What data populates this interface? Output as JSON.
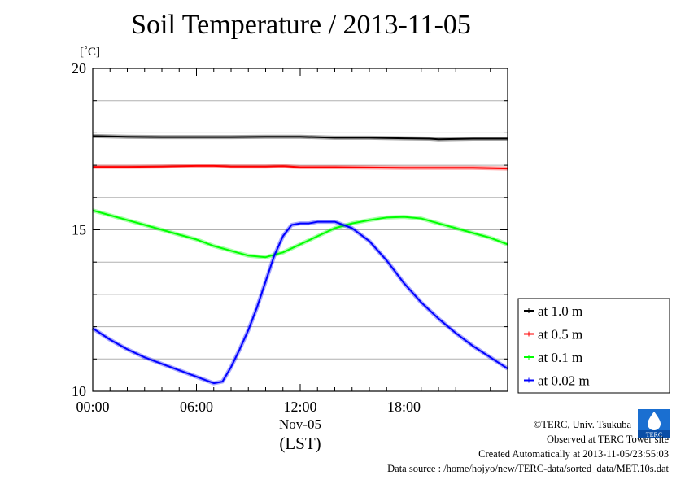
{
  "chart_data": {
    "type": "line",
    "title": "Soil Temperature / 2013-11-05",
    "ylabel": "[˚C]",
    "xlabel": "(LST)",
    "xdate": "Nov-05",
    "ylim": [
      10,
      20
    ],
    "xlim": [
      0,
      24
    ],
    "yticks": [
      10,
      15,
      20
    ],
    "xticks": [
      {
        "x": 0,
        "label": "00:00"
      },
      {
        "x": 6,
        "label": "06:00"
      },
      {
        "x": 12,
        "label": "12:00"
      },
      {
        "x": 18,
        "label": "18:00"
      }
    ],
    "grid": true,
    "legend_position": "right",
    "series": [
      {
        "name": "at 1.0 m",
        "color": "#000000",
        "points": [
          [
            0,
            17.9
          ],
          [
            2,
            17.88
          ],
          [
            4,
            17.87
          ],
          [
            6,
            17.87
          ],
          [
            8,
            17.87
          ],
          [
            10,
            17.88
          ],
          [
            12,
            17.88
          ],
          [
            14,
            17.85
          ],
          [
            16,
            17.85
          ],
          [
            18,
            17.83
          ],
          [
            19.5,
            17.82
          ],
          [
            20,
            17.8
          ],
          [
            22,
            17.82
          ],
          [
            24,
            17.82
          ]
        ]
      },
      {
        "name": "at 0.5 m",
        "color": "#ff0000",
        "points": [
          [
            0,
            16.95
          ],
          [
            2,
            16.95
          ],
          [
            4,
            16.96
          ],
          [
            6,
            16.98
          ],
          [
            7,
            16.98
          ],
          [
            8,
            16.96
          ],
          [
            10,
            16.96
          ],
          [
            11,
            16.97
          ],
          [
            12,
            16.94
          ],
          [
            14,
            16.94
          ],
          [
            16,
            16.93
          ],
          [
            18,
            16.92
          ],
          [
            20,
            16.92
          ],
          [
            22,
            16.92
          ],
          [
            24,
            16.9
          ]
        ]
      },
      {
        "name": "at 0.1 m",
        "color": "#00ff00",
        "points": [
          [
            0,
            15.6
          ],
          [
            1,
            15.45
          ],
          [
            2,
            15.3
          ],
          [
            3,
            15.15
          ],
          [
            4,
            15.0
          ],
          [
            5,
            14.85
          ],
          [
            6,
            14.7
          ],
          [
            7,
            14.5
          ],
          [
            8,
            14.35
          ],
          [
            9,
            14.2
          ],
          [
            10,
            14.15
          ],
          [
            11,
            14.3
          ],
          [
            12,
            14.55
          ],
          [
            13,
            14.8
          ],
          [
            14,
            15.05
          ],
          [
            15,
            15.2
          ],
          [
            16,
            15.3
          ],
          [
            17,
            15.38
          ],
          [
            18,
            15.4
          ],
          [
            19,
            15.35
          ],
          [
            20,
            15.2
          ],
          [
            21,
            15.05
          ],
          [
            22,
            14.9
          ],
          [
            23,
            14.75
          ],
          [
            24,
            14.55
          ]
        ]
      },
      {
        "name": "at 0.02 m",
        "color": "#0000ff",
        "points": [
          [
            0,
            11.95
          ],
          [
            1,
            11.6
          ],
          [
            2,
            11.3
          ],
          [
            3,
            11.05
          ],
          [
            4,
            10.85
          ],
          [
            5,
            10.65
          ],
          [
            6,
            10.45
          ],
          [
            7,
            10.25
          ],
          [
            7.5,
            10.3
          ],
          [
            8,
            10.75
          ],
          [
            8.5,
            11.3
          ],
          [
            9,
            11.9
          ],
          [
            9.5,
            12.6
          ],
          [
            10,
            13.4
          ],
          [
            10.5,
            14.2
          ],
          [
            11,
            14.8
          ],
          [
            11.5,
            15.15
          ],
          [
            12,
            15.2
          ],
          [
            12.5,
            15.2
          ],
          [
            13,
            15.25
          ],
          [
            14,
            15.25
          ],
          [
            15,
            15.05
          ],
          [
            16,
            14.65
          ],
          [
            17,
            14.05
          ],
          [
            18,
            13.35
          ],
          [
            19,
            12.75
          ],
          [
            20,
            12.25
          ],
          [
            21,
            11.8
          ],
          [
            22,
            11.4
          ],
          [
            23,
            11.05
          ],
          [
            24,
            10.7
          ]
        ]
      }
    ]
  },
  "credits": {
    "copyright": "©TERC, Univ. Tsukuba",
    "observed": "Observed at TERC Tower site",
    "created": "Created Automatically at 2013-11-05/23:55:03",
    "source": "Data source : /home/hojyo/new/TERC-data/sorted_data/MET.10s.dat",
    "logo_text": "TERC"
  }
}
